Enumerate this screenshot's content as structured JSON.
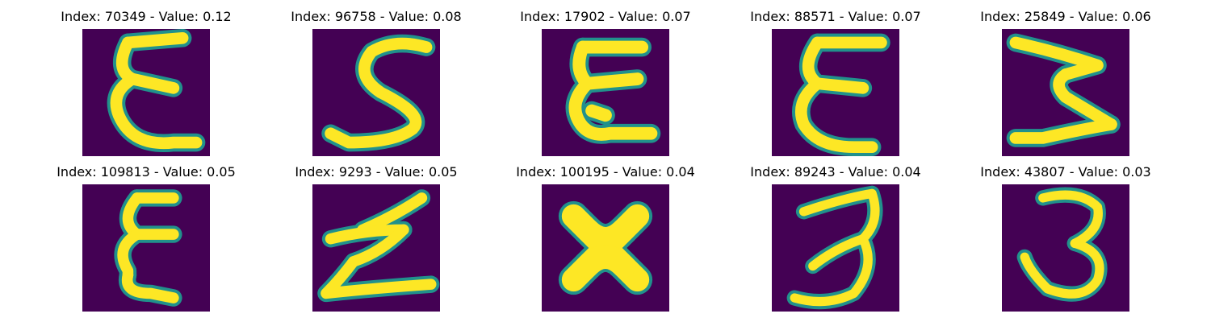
{
  "panels": [
    {
      "title": "Index: 70349 - Value: 0.12",
      "glyph": "E"
    },
    {
      "title": "Index: 96758 - Value: 0.08",
      "glyph": "S"
    },
    {
      "title": "Index: 17902 - Value: 0.07",
      "glyph": "E"
    },
    {
      "title": "Index: 88571 - Value: 0.07",
      "glyph": "E"
    },
    {
      "title": "Index: 25849 - Value: 0.06",
      "glyph": "M"
    },
    {
      "title": "Index: 109813 - Value: 0.05",
      "glyph": "E"
    },
    {
      "title": "Index: 9293 - Value: 0.05",
      "glyph": "Z"
    },
    {
      "title": "Index: 100195 - Value: 0.04",
      "glyph": "X"
    },
    {
      "title": "Index: 89243 - Value: 0.04",
      "glyph": "3"
    },
    {
      "title": "Index: 43807 - Value: 0.03",
      "glyph": "3"
    }
  ],
  "colors": {
    "background": "#440154",
    "mid": "#21918c",
    "foreground": "#fde725"
  }
}
